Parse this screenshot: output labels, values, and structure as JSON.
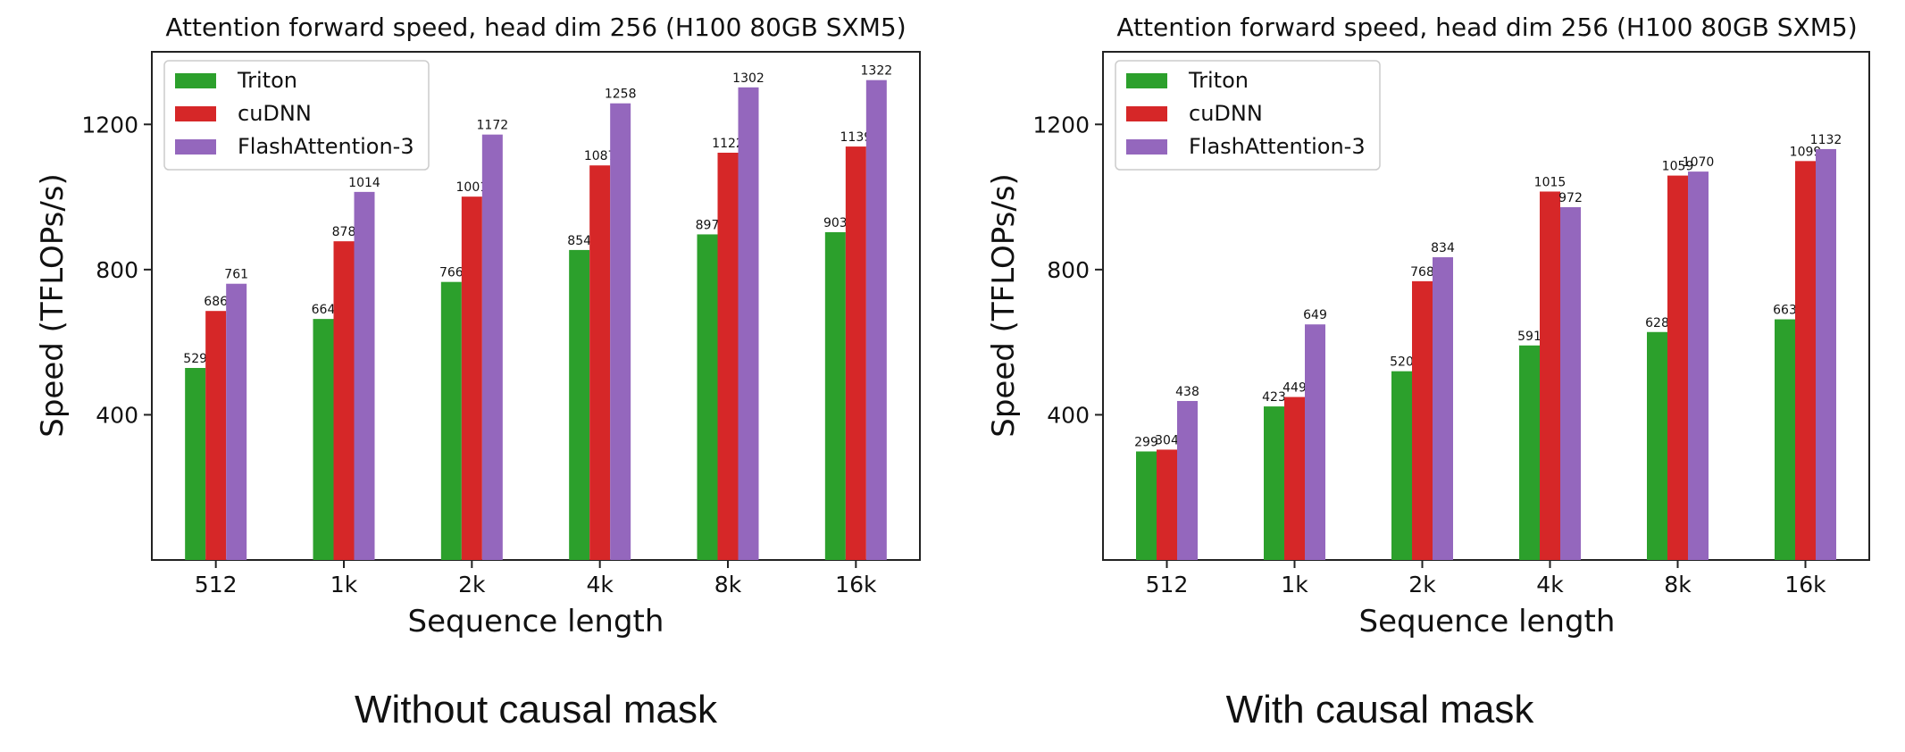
{
  "captions": {
    "left": "Without causal mask",
    "right": "With causal mask"
  },
  "colors": {
    "Triton": "#2ca02c",
    "cuDNN": "#d62728",
    "FlashAttention-3": "#9467bd"
  },
  "chart_data": [
    {
      "type": "bar",
      "title": "Attention forward speed, head dim 256 (H100 80GB SXM5)",
      "xlabel": "Sequence length",
      "ylabel": "Speed (TFLOPs/s)",
      "ylim": [
        0,
        1400
      ],
      "yticks": [
        400,
        800,
        1200
      ],
      "legend_position": "top-left",
      "categories": [
        "512",
        "1k",
        "2k",
        "4k",
        "8k",
        "16k"
      ],
      "series": [
        {
          "name": "Triton",
          "values": [
            529,
            664,
            766,
            854,
            897,
            903
          ]
        },
        {
          "name": "cuDNN",
          "values": [
            686,
            878,
            1001,
            1087,
            1122,
            1139
          ]
        },
        {
          "name": "FlashAttention-3",
          "values": [
            761,
            1014,
            1172,
            1258,
            1302,
            1322
          ]
        }
      ]
    },
    {
      "type": "bar",
      "title": "Attention forward speed, head dim 256 (H100 80GB SXM5)",
      "xlabel": "Sequence length",
      "ylabel": "Speed (TFLOPs/s)",
      "ylim": [
        0,
        1400
      ],
      "yticks": [
        400,
        800,
        1200
      ],
      "legend_position": "top-left",
      "categories": [
        "512",
        "1k",
        "2k",
        "4k",
        "8k",
        "16k"
      ],
      "series": [
        {
          "name": "Triton",
          "values": [
            299,
            423,
            520,
            591,
            628,
            663
          ]
        },
        {
          "name": "cuDNN",
          "values": [
            304,
            449,
            768,
            1015,
            1059,
            1099
          ]
        },
        {
          "name": "FlashAttention-3",
          "values": [
            438,
            649,
            834,
            972,
            1070,
            1132
          ]
        }
      ]
    }
  ]
}
